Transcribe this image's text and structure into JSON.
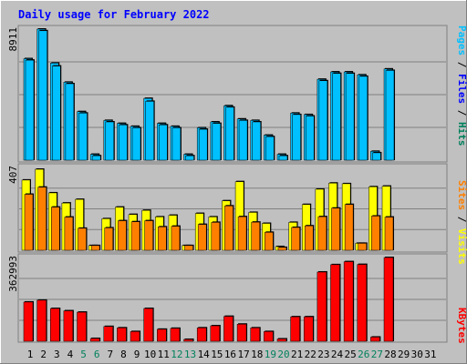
{
  "chart_data": [
    {
      "type": "bar",
      "title": "Daily usage for February 2022",
      "categories": [
        "1",
        "2",
        "3",
        "4",
        "5",
        "6",
        "7",
        "8",
        "9",
        "10",
        "11",
        "12",
        "13",
        "14",
        "15",
        "16",
        "17",
        "18",
        "19",
        "20",
        "21",
        "22",
        "23",
        "24",
        "25",
        "26",
        "27",
        "28",
        "29",
        "30",
        "31"
      ],
      "weekend_days": [
        "5",
        "6",
        "12",
        "13",
        "19",
        "20",
        "26",
        "27"
      ],
      "ymax_label": "8911",
      "ylim": [
        0,
        8911
      ],
      "series": [
        {
          "name": "Hits",
          "color": "#00805c",
          "values": [
            6900,
            8911,
            6600,
            5300,
            3300,
            400,
            2700,
            2500,
            2300,
            4200,
            2500,
            2300,
            400,
            2200,
            2600,
            3700,
            2800,
            2700,
            1700,
            400,
            3200,
            3100,
            5500,
            6000,
            6000,
            5800,
            600,
            6200,
            null,
            null,
            null
          ]
        },
        {
          "name": "Files",
          "color": "#0000ff",
          "values": [
            null,
            null,
            null,
            null,
            null,
            null,
            null,
            null,
            null,
            null,
            null,
            null,
            null,
            null,
            null,
            null,
            null,
            null,
            null,
            null,
            null,
            null,
            null,
            null,
            null,
            null,
            null,
            null,
            null,
            null,
            null
          ]
        },
        {
          "name": "Pages",
          "color": "#00c0ff",
          "values": [
            6800,
            8800,
            6400,
            5200,
            3200,
            300,
            2600,
            2400,
            2200,
            4000,
            2400,
            2200,
            300,
            2100,
            2500,
            3600,
            2700,
            2600,
            1600,
            300,
            3100,
            3000,
            5400,
            5900,
            5900,
            5700,
            500,
            6100,
            null,
            null,
            null
          ]
        }
      ],
      "legend": [
        "Pages",
        "/",
        "Files",
        "/",
        "Hits"
      ]
    },
    {
      "type": "bar",
      "ymax_label": "407",
      "ylim": [
        0,
        407
      ],
      "series": [
        {
          "name": "Visits",
          "color": "#ffff00",
          "values": [
            345,
            398,
            282,
            232,
            250,
            23,
            155,
            212,
            176,
            196,
            164,
            172,
            23,
            181,
            164,
            243,
            337,
            186,
            132,
            18,
            137,
            225,
            300,
            330,
            327,
            34,
            312,
            315,
            null,
            null,
            null
          ]
        },
        {
          "name": "Sites",
          "color": "#ff8000",
          "values": [
            275,
            310,
            212,
            163,
            108,
            23,
            110,
            145,
            140,
            145,
            115,
            118,
            23,
            127,
            137,
            218,
            165,
            138,
            88,
            14,
            112,
            120,
            165,
            207,
            225,
            34,
            168,
            163,
            null,
            null,
            null
          ]
        }
      ],
      "legend": [
        "Sites",
        "/",
        "Visits"
      ]
    },
    {
      "type": "bar",
      "ymax_label": "362993",
      "ylim": [
        0,
        362993
      ],
      "series": [
        {
          "name": "KBytes",
          "color": "#ff0000",
          "values": [
            170000,
            178000,
            142000,
            132000,
            126000,
            12000,
            64000,
            58000,
            42000,
            142000,
            52000,
            56000,
            8000,
            58000,
            67000,
            108000,
            74000,
            58000,
            42000,
            10000,
            106000,
            106000,
            300000,
            332000,
            345000,
            333000,
            18000,
            362993,
            null,
            null,
            null
          ]
        }
      ],
      "legend": [
        "KBytes"
      ]
    }
  ]
}
